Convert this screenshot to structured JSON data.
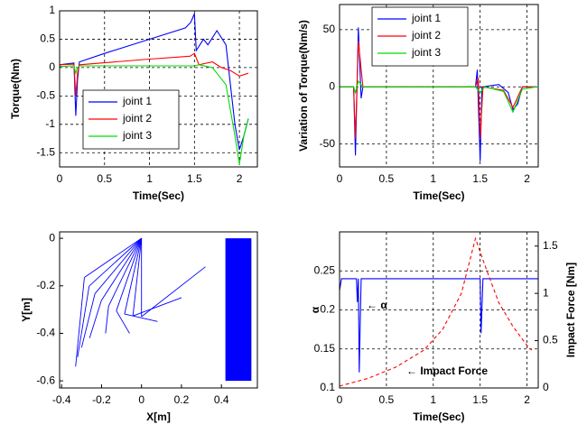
{
  "chart_data": [
    {
      "type": "line",
      "xlabel": "Time(Sec)",
      "ylabel": "Torque(Nm)",
      "xlim": [
        0,
        2.2
      ],
      "ylim": [
        -1.75,
        1
      ],
      "xticks": [
        0,
        0.5,
        1,
        1.5,
        2
      ],
      "yticks": [
        -1.5,
        -1,
        -0.5,
        0,
        0.5,
        1
      ],
      "grid": true,
      "legend": "lower left",
      "series": [
        {
          "name": "joint 1",
          "color": "#0000ff",
          "x": [
            0,
            0.1,
            0.16,
            0.18,
            0.2,
            0.22,
            0.5,
            1.0,
            1.4,
            1.46,
            1.5,
            1.52,
            1.6,
            1.65,
            1.75,
            1.85,
            1.95,
            2.0,
            2.05,
            2.1
          ],
          "values": [
            0.05,
            0.07,
            0.08,
            -0.85,
            -0.2,
            0.1,
            0.25,
            0.5,
            0.7,
            0.8,
            0.95,
            0.3,
            0.5,
            0.4,
            0.65,
            0.4,
            -1.0,
            -1.45,
            -1.2,
            -0.9
          ]
        },
        {
          "name": "joint 2",
          "color": "#ff0000",
          "x": [
            0,
            0.16,
            0.18,
            0.2,
            0.22,
            1.0,
            1.45,
            1.5,
            1.55,
            1.7,
            1.8,
            1.9,
            2.0,
            2.1
          ],
          "values": [
            0.05,
            0.06,
            -0.5,
            -0.1,
            0.05,
            0.15,
            0.2,
            0.25,
            0.05,
            0.1,
            0.0,
            -0.05,
            -0.15,
            -0.1
          ]
        },
        {
          "name": "joint 3",
          "color": "#00dd00",
          "x": [
            0,
            0.16,
            0.18,
            0.2,
            0.22,
            1.5,
            1.55,
            1.7,
            1.85,
            1.95,
            2.0,
            2.05,
            2.1
          ],
          "values": [
            0.02,
            0.03,
            -0.1,
            0.0,
            0.03,
            0.03,
            0.05,
            0.0,
            -0.3,
            -1.2,
            -1.7,
            -1.2,
            -0.9
          ]
        }
      ]
    },
    {
      "type": "line",
      "xlabel": "Time(Sec)",
      "ylabel": "Variation of Torque(Nm/s)",
      "xlim": [
        0,
        2.12
      ],
      "ylim": [
        -70,
        72
      ],
      "xticks": [
        0,
        0.5,
        1,
        1.5,
        2
      ],
      "yticks": [
        -50,
        0,
        50
      ],
      "grid": true,
      "legend": "upper right",
      "series": [
        {
          "name": "joint 1",
          "color": "#0000ff",
          "x": [
            0,
            0.15,
            0.17,
            0.2,
            0.23,
            0.25,
            1.45,
            1.47,
            1.5,
            1.52,
            1.7,
            1.8,
            1.85,
            1.9,
            1.95,
            2.1
          ],
          "values": [
            0,
            0,
            -60,
            52,
            -10,
            0,
            0,
            15,
            -65,
            0,
            2,
            -5,
            -20,
            -15,
            0,
            0
          ]
        },
        {
          "name": "joint 2",
          "color": "#ff0000",
          "x": [
            0,
            0.15,
            0.17,
            0.2,
            0.25,
            1.45,
            1.48,
            1.5,
            1.53,
            1.75,
            1.85,
            1.95,
            2.1
          ],
          "values": [
            0,
            0,
            -45,
            40,
            0,
            0,
            8,
            -45,
            0,
            -3,
            -18,
            0,
            0
          ]
        },
        {
          "name": "joint 3",
          "color": "#00dd00",
          "x": [
            0,
            0.15,
            0.17,
            0.2,
            0.25,
            1.45,
            1.5,
            1.55,
            1.75,
            1.85,
            1.95,
            2.1
          ],
          "values": [
            0,
            0,
            -5,
            5,
            0,
            0,
            -5,
            0,
            -4,
            -22,
            -2,
            0
          ]
        }
      ]
    },
    {
      "type": "arm",
      "xlabel": "X[m]",
      "ylabel": "Y[m]",
      "xlim": [
        -0.41,
        0.58
      ],
      "ylim": [
        -0.63,
        0.027
      ],
      "xticks": [
        -0.4,
        -0.2,
        0,
        0.2,
        0.4
      ],
      "yticks": [
        -0.6,
        -0.4,
        -0.2,
        0
      ],
      "grid": false,
      "color": "#0000ff",
      "base": [
        0,
        0
      ],
      "elbow_x": [
        -0.286,
        -0.262,
        -0.233,
        -0.201,
        -0.165,
        -0.126,
        -0.085,
        -0.043,
        0
      ],
      "elbow_y": [
        -0.165,
        -0.201,
        -0.233,
        -0.262,
        -0.286,
        -0.305,
        -0.319,
        -0.327,
        -0.33
      ],
      "end_x": [
        -0.33,
        -0.32,
        -0.3,
        -0.26,
        -0.18,
        -0.06,
        0.08,
        0.2,
        0.32
      ],
      "end_y": [
        -0.54,
        -0.5,
        -0.46,
        -0.42,
        -0.4,
        -0.4,
        -0.35,
        -0.25,
        -0.12
      ],
      "wall": {
        "x": [
          0.42,
          0.55
        ],
        "y": [
          -0.6,
          0
        ]
      }
    },
    {
      "type": "line",
      "xlabel": "Time(Sec)",
      "ylabel": "α",
      "y2label": "Impact Force [Nm]",
      "xlim": [
        0,
        2.12
      ],
      "ylim": [
        0.1,
        0.3
      ],
      "y2lim": [
        0,
        1.65
      ],
      "xticks": [
        0,
        0.5,
        1,
        1.5,
        2
      ],
      "yticks": [
        0.1,
        0.15,
        0.2,
        0.25
      ],
      "y2ticks": [
        0,
        0.5,
        1,
        1.5
      ],
      "grid": true,
      "annotations": [
        "← α",
        "← Impact Force"
      ],
      "series": [
        {
          "color": "#0000ff",
          "x": [
            0,
            0.02,
            0.18,
            0.19,
            0.2,
            0.21,
            0.23,
            1.5,
            1.51,
            1.53,
            2.12
          ],
          "values": [
            0.225,
            0.24,
            0.24,
            0.21,
            0.24,
            0.12,
            0.24,
            0.24,
            0.17,
            0.24,
            0.24
          ]
        },
        {
          "color": "#ff0000",
          "axis": "y2",
          "dashed": true,
          "x": [
            0,
            0.3,
            0.6,
            0.9,
            1.1,
            1.3,
            1.45,
            1.55,
            1.7,
            1.85,
            2.0,
            2.05
          ],
          "values": [
            0.02,
            0.1,
            0.22,
            0.4,
            0.62,
            1.0,
            1.58,
            1.3,
            0.9,
            0.65,
            0.45,
            0.4
          ]
        }
      ]
    }
  ]
}
